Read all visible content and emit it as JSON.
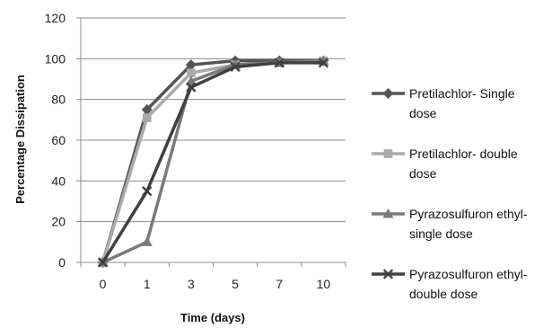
{
  "chart_data": {
    "type": "line",
    "title": "",
    "xlabel": "Time (days)",
    "ylabel": "Percentage Dissipation",
    "categories": [
      "0",
      "1",
      "3",
      "5",
      "7",
      "10"
    ],
    "ylim": [
      0,
      120
    ],
    "yticks": [
      0,
      20,
      40,
      60,
      80,
      100,
      120
    ],
    "grid": "horizontal",
    "legend_position": "right",
    "series": [
      {
        "name": "Pretilachlor- Single dose",
        "legend_lines": [
          "Pretilachlor- Single",
          "dose"
        ],
        "values": [
          0,
          75,
          97,
          99,
          99,
          99
        ],
        "color": "#555555",
        "marker": "diamond-icon"
      },
      {
        "name": "Pretilachlor- double dose",
        "legend_lines": [
          "Pretilachlor- double",
          "dose"
        ],
        "values": [
          0,
          71,
          93,
          97,
          98,
          99
        ],
        "color": "#aaaaaa",
        "marker": "square-icon"
      },
      {
        "name": "Pyrazosulfuron ethyl- single dose",
        "legend_lines": [
          "Pyrazosulfuron ethyl-",
          "single dose"
        ],
        "values": [
          0,
          10,
          89,
          97,
          98,
          99
        ],
        "color": "#7a7a7a",
        "marker": "triangle-icon"
      },
      {
        "name": "Pyrazosulfuron ethyl- double dose",
        "legend_lines": [
          "Pyrazosulfuron ethyl-",
          "double dose"
        ],
        "values": [
          0,
          35,
          86,
          96,
          98,
          98
        ],
        "color": "#404040",
        "marker": "x-icon"
      }
    ]
  }
}
